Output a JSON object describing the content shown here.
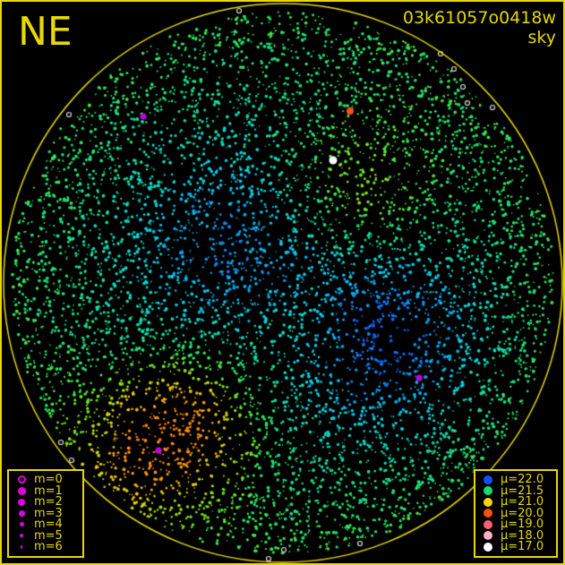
{
  "header": {
    "direction": "NE",
    "observation_id": "03k61057o0418w",
    "plot_type": "sky"
  },
  "magnitude_legend": [
    {
      "label": "m=0",
      "symbol": "ring"
    },
    {
      "label": "m=1",
      "symbol": "dot"
    },
    {
      "label": "m=2",
      "symbol": "dot"
    },
    {
      "label": "m=3",
      "symbol": "dot"
    },
    {
      "label": "m=4",
      "symbol": "dot"
    },
    {
      "label": "m=5",
      "symbol": "dot"
    },
    {
      "label": "m=6",
      "symbol": "dot"
    }
  ],
  "sky_brightness_legend": [
    {
      "label": "μ=22.0",
      "color": "#1450ff"
    },
    {
      "label": "μ=21.5",
      "color": "#10e070"
    },
    {
      "label": "μ=21.0",
      "color": "#ffd800"
    },
    {
      "label": "μ=20.0",
      "color": "#ff5010"
    },
    {
      "label": "μ=19.0",
      "color": "#ff6070"
    },
    {
      "label": "μ=18.0",
      "color": "#ffb0c0"
    },
    {
      "label": "μ=17.0",
      "color": "#ffffff"
    }
  ],
  "colors": {
    "frame": "#e6d800",
    "magnitude_symbol": "#e000e0",
    "background": "#000000"
  }
}
